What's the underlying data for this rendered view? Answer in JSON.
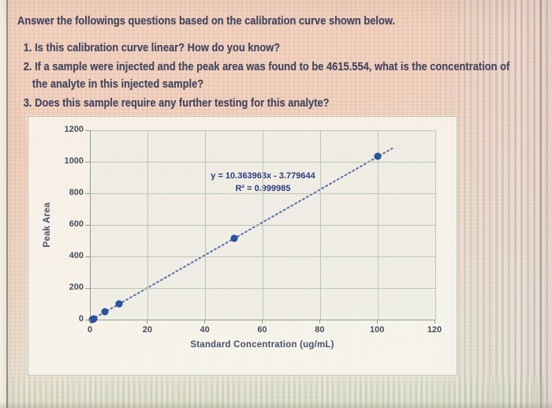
{
  "document": {
    "prompt": "Answer the followings questions based on the calibration curve shown below.",
    "questions": [
      "1. Is this calibration curve linear? How do you know?",
      "2. If a sample were injected and the peak area was found to be 4615.554, what is the concentration of the analyte in this injected sample?",
      "3. Does this sample require any further testing for this analyte?"
    ]
  },
  "chart_data": {
    "type": "scatter",
    "title": "",
    "xlabel": "Standard Concentration (ug/mL)",
    "ylabel": "Peak Area",
    "xlim": [
      0,
      120
    ],
    "ylim": [
      0,
      1200
    ],
    "x_ticks": [
      0,
      20,
      40,
      60,
      80,
      100,
      120
    ],
    "y_ticks": [
      0,
      200,
      400,
      600,
      800,
      1000,
      1200
    ],
    "grid": true,
    "points": [
      {
        "x": 0.5,
        "y": 1
      },
      {
        "x": 1,
        "y": 7
      },
      {
        "x": 5,
        "y": 48
      },
      {
        "x": 10,
        "y": 100
      },
      {
        "x": 50,
        "y": 514
      },
      {
        "x": 100,
        "y": 1033
      }
    ],
    "trendline": {
      "equation": "y = 10.363963x - 3.779644",
      "r_squared": "R² = 0.999985",
      "slope": 10.363963,
      "intercept": -3.779644,
      "x_start": 0.4,
      "x_end": 105,
      "style": "dotted"
    },
    "colors": {
      "marker": "#2a55a5",
      "trendline": "#5b74a8",
      "gridline": "#b9c7b5",
      "axis": "#8aa08e",
      "annotation_text": "#2b3d7e"
    }
  }
}
